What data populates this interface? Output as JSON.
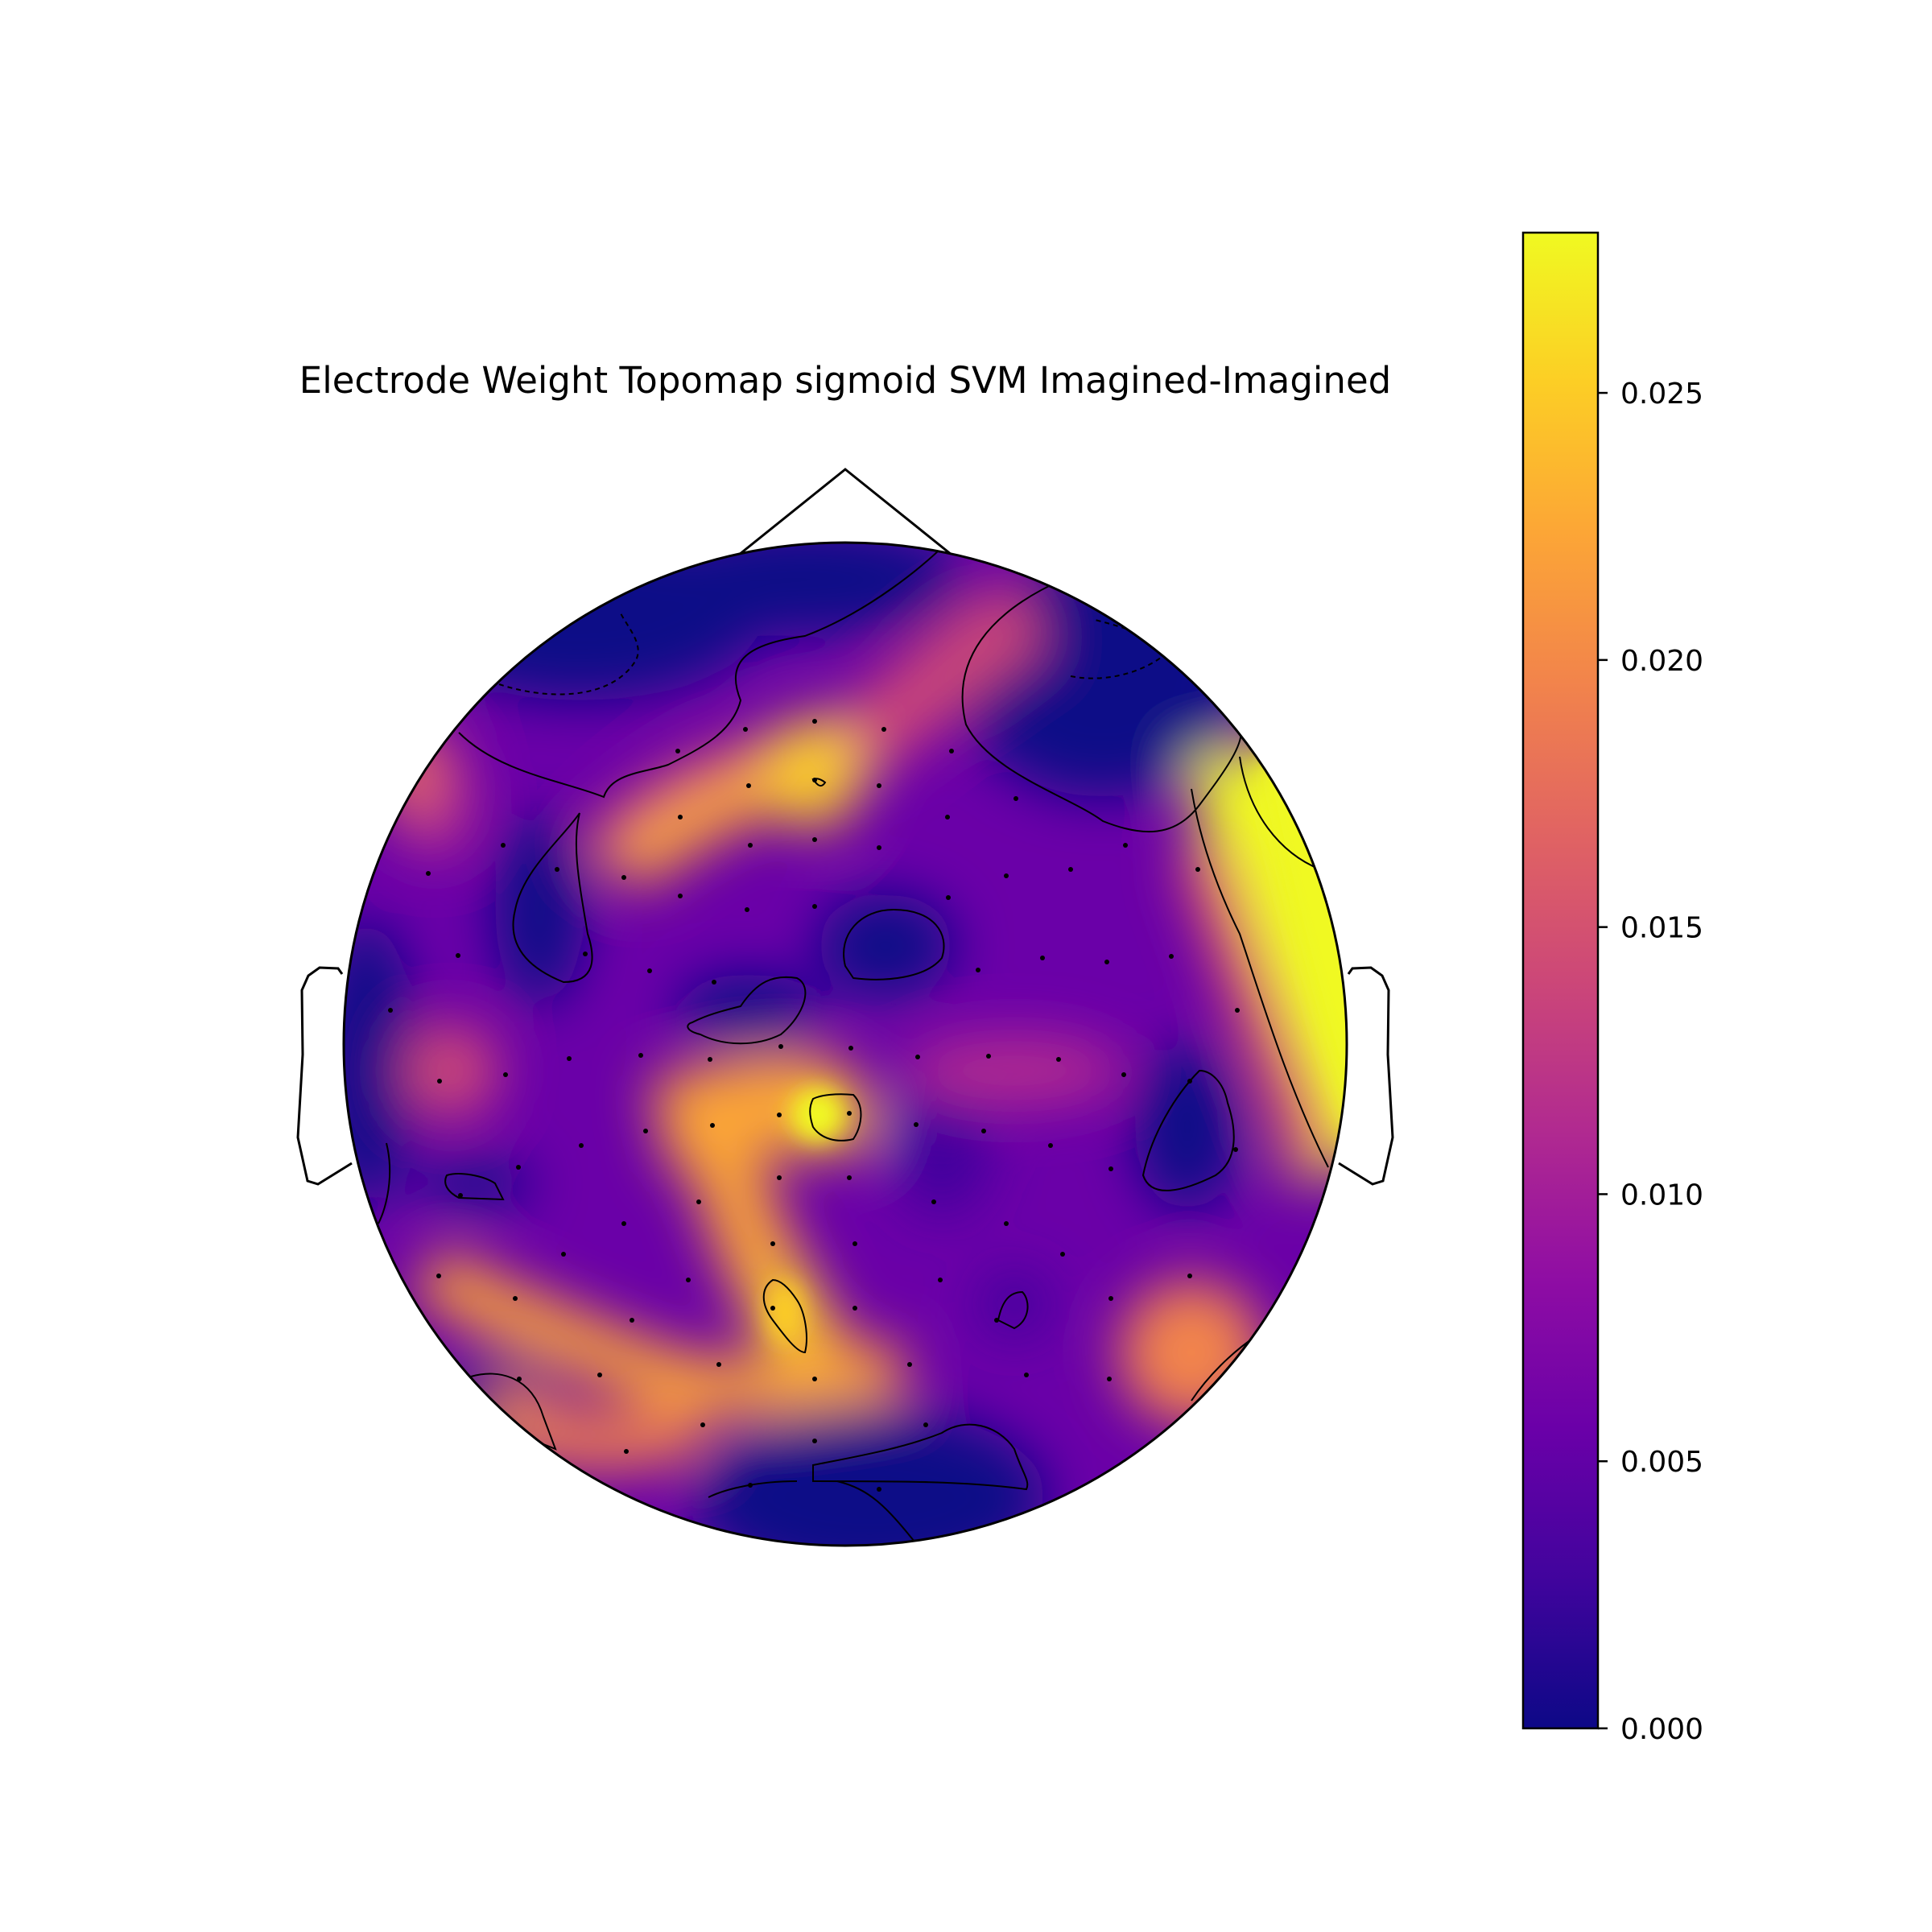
{
  "chart_data": {
    "type": "heatmap",
    "subtype": "topomap",
    "title": "Electrode Weight Topomap sigmoid SVM Imagined-Imagined",
    "colormap": "plasma",
    "colorbar": {
      "min": 0.0,
      "max": 0.028,
      "ticks": [
        0.0,
        0.005,
        0.01,
        0.015,
        0.02,
        0.025
      ],
      "tick_labels": [
        "0.000",
        "0.005",
        "0.010",
        "0.015",
        "0.020",
        "0.025"
      ]
    },
    "electrodes_shown": true,
    "contours_shown": true,
    "high_regions": [
      "right temporal",
      "frontal midline",
      "centro-parietal midline",
      "left posterior",
      "right posterior"
    ],
    "low_regions": [
      "frontal poles",
      "central",
      "right centro-parietal",
      "occipital"
    ]
  }
}
